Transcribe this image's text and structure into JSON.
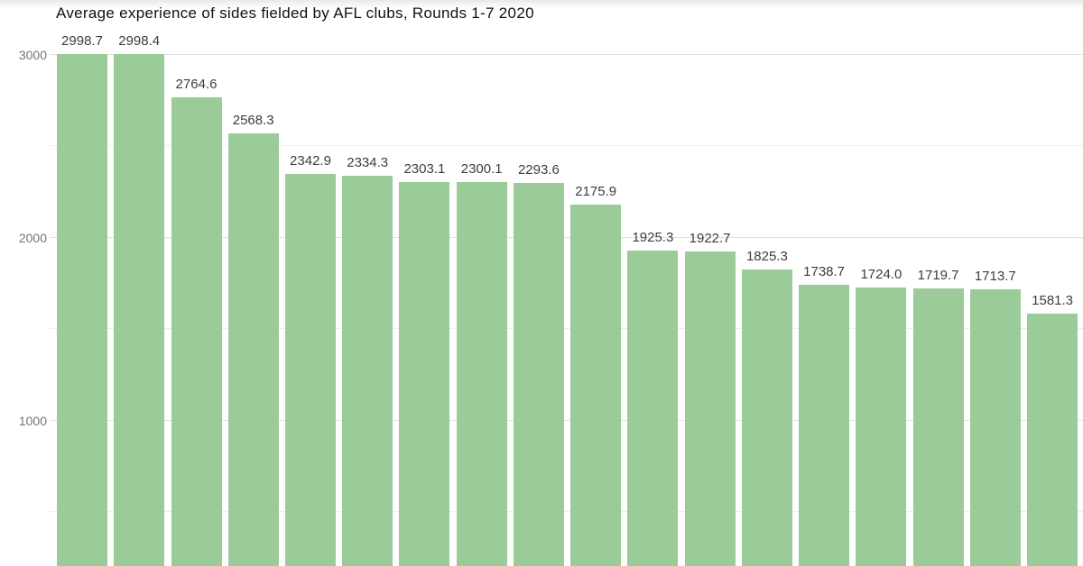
{
  "chart_data": {
    "type": "bar",
    "title": "Average experience of sides fielded by AFL clubs, Rounds 1-7 2020",
    "values": [
      2998.7,
      2998.4,
      2764.6,
      2568.3,
      2342.9,
      2334.3,
      2303.1,
      2300.1,
      2293.6,
      2175.9,
      1925.3,
      1922.7,
      1825.3,
      1738.7,
      1724.0,
      1719.7,
      1713.7,
      1581.3
    ],
    "value_labels": [
      "2998.7",
      "2998.4",
      "2764.6",
      "2568.3",
      "2342.9",
      "2334.3",
      "2303.1",
      "2300.1",
      "2293.6",
      "2175.9",
      "1925.3",
      "1922.7",
      "1825.3",
      "1738.7",
      "1724.0",
      "1719.7",
      "1713.7",
      "1581.3"
    ],
    "bar_count": 18,
    "sorted": "descending",
    "xlabel": "",
    "ylabel": "",
    "x_axis": {
      "tick_labels_visible": false
    },
    "y_axis": {
      "ticks": [
        {
          "value": 3000,
          "label": "3000"
        },
        {
          "value": 2000,
          "label": "2000"
        },
        {
          "value": 1000,
          "label": "1000"
        }
      ],
      "minor_gridline_values": [
        2500,
        1500,
        500
      ],
      "range_shown_bottom_cropped": true,
      "ylim": [
        0,
        3078
      ]
    },
    "legend": {
      "visible": false
    },
    "grid": true,
    "colors": {
      "bar": "#9bcb99",
      "major_gridline": "#e2e2e2",
      "minor_gridline": "#eeeeee",
      "tick_label": "#757575",
      "value_label": "#3d3d3d",
      "title": "#111111",
      "background": "#ffffff"
    }
  }
}
